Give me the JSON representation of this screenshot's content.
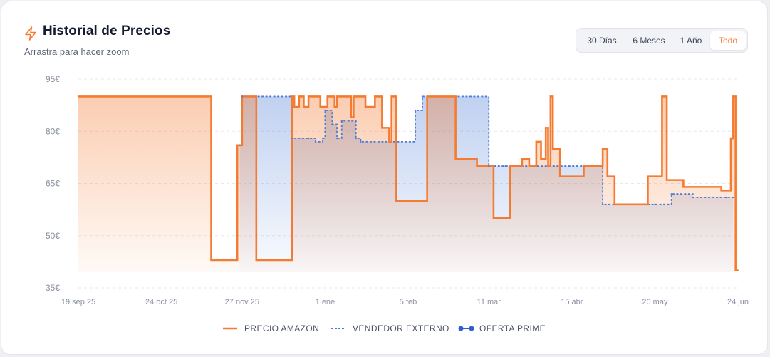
{
  "header": {
    "icon": "lightning-bolt-icon",
    "title": "Historial de Precios",
    "subtitle": "Arrastra para hacer zoom"
  },
  "range_tabs": [
    {
      "label": "30 Días",
      "active": false
    },
    {
      "label": "6 Meses",
      "active": false
    },
    {
      "label": "1 Año",
      "active": false
    },
    {
      "label": "Todo",
      "active": true
    }
  ],
  "colors": {
    "amazon": "#f47c32",
    "external": "#4a7bd6",
    "prime": "#2f5fd0",
    "grid": "#e6e8ee",
    "axis_text": "#8a91a0"
  },
  "legend": [
    {
      "label": "PRECIO AMAZON",
      "style": "solid-line"
    },
    {
      "label": "VENDEDOR EXTERNO",
      "style": "dashed-line"
    },
    {
      "label": "OFERTA PRIME",
      "style": "dot-line"
    }
  ],
  "chart_data": {
    "type": "line",
    "title": "",
    "xlabel": "",
    "ylabel": "",
    "ylim": [
      35,
      95
    ],
    "yticks": [
      {
        "value": 95,
        "label": "95€"
      },
      {
        "value": 80,
        "label": "80€"
      },
      {
        "value": 65,
        "label": "65€"
      },
      {
        "value": 50,
        "label": "50€"
      },
      {
        "value": 35,
        "label": "35€"
      }
    ],
    "xlim": [
      "2025-09-19",
      "2026-06-24"
    ],
    "xticks": [
      {
        "date": "2025-09-19",
        "label": "19 sep 25"
      },
      {
        "date": "2025-10-24",
        "label": "24 oct 25"
      },
      {
        "date": "2025-11-27",
        "label": "27 nov 25"
      },
      {
        "date": "2026-01-01",
        "label": "1 ene"
      },
      {
        "date": "2026-02-05",
        "label": "5 feb"
      },
      {
        "date": "2026-03-11",
        "label": "11 mar"
      },
      {
        "date": "2026-04-15",
        "label": "15 abr"
      },
      {
        "date": "2026-05-20",
        "label": "20 may"
      },
      {
        "date": "2026-06-24",
        "label": "24 jun"
      }
    ],
    "series": [
      {
        "name": "PRECIO AMAZON",
        "step": true,
        "points": [
          [
            "2025-09-19",
            90
          ],
          [
            "2025-11-14",
            43
          ],
          [
            "2025-11-25",
            76
          ],
          [
            "2025-11-27",
            90
          ],
          [
            "2025-12-03",
            43
          ],
          [
            "2025-12-18",
            90
          ],
          [
            "2025-12-19",
            87
          ],
          [
            "2025-12-21",
            90
          ],
          [
            "2025-12-23",
            87
          ],
          [
            "2025-12-25",
            90
          ],
          [
            "2025-12-30",
            87
          ],
          [
            "2026-01-02",
            90
          ],
          [
            "2026-01-05",
            87
          ],
          [
            "2026-01-06",
            90
          ],
          [
            "2026-01-10",
            90
          ],
          [
            "2026-01-12",
            84
          ],
          [
            "2026-01-13",
            90
          ],
          [
            "2026-01-18",
            87
          ],
          [
            "2026-01-22",
            90
          ],
          [
            "2026-01-25",
            81
          ],
          [
            "2026-01-28",
            77
          ],
          [
            "2026-01-29",
            90
          ],
          [
            "2026-01-31",
            60
          ],
          [
            "2026-02-13",
            90
          ],
          [
            "2026-02-25",
            72
          ],
          [
            "2026-03-06",
            70
          ],
          [
            "2026-03-13",
            55
          ],
          [
            "2026-03-20",
            70
          ],
          [
            "2026-03-25",
            72
          ],
          [
            "2026-03-28",
            70
          ],
          [
            "2026-03-31",
            77
          ],
          [
            "2026-04-02",
            72
          ],
          [
            "2026-04-04",
            81
          ],
          [
            "2026-04-05",
            70
          ],
          [
            "2026-04-06",
            90
          ],
          [
            "2026-04-07",
            75
          ],
          [
            "2026-04-10",
            67
          ],
          [
            "2026-04-20",
            70
          ],
          [
            "2026-04-28",
            75
          ],
          [
            "2026-04-30",
            67
          ],
          [
            "2026-05-03",
            59
          ],
          [
            "2026-05-17",
            67
          ],
          [
            "2026-05-23",
            90
          ],
          [
            "2026-05-25",
            66
          ],
          [
            "2026-06-01",
            64
          ],
          [
            "2026-06-17",
            63
          ],
          [
            "2026-06-20",
            63
          ],
          [
            "2026-06-21",
            78
          ],
          [
            "2026-06-22",
            90
          ],
          [
            "2026-06-23",
            40
          ],
          [
            "2026-06-24",
            40
          ]
        ]
      },
      {
        "name": "VENDEDOR EXTERNO",
        "step": true,
        "points": [
          [
            "2025-11-26",
            76
          ],
          [
            "2025-11-27",
            90
          ],
          [
            "2025-12-18",
            78
          ],
          [
            "2025-12-25",
            78
          ],
          [
            "2025-12-28",
            77
          ],
          [
            "2025-12-31",
            78
          ],
          [
            "2026-01-01",
            86
          ],
          [
            "2026-01-04",
            82
          ],
          [
            "2026-01-06",
            78
          ],
          [
            "2026-01-08",
            83
          ],
          [
            "2026-01-14",
            78
          ],
          [
            "2026-01-16",
            77
          ],
          [
            "2026-02-08",
            86
          ],
          [
            "2026-02-11",
            90
          ],
          [
            "2026-03-11",
            70
          ],
          [
            "2026-03-18",
            70
          ],
          [
            "2026-04-28",
            59
          ],
          [
            "2026-05-20",
            59
          ],
          [
            "2026-05-27",
            62
          ],
          [
            "2026-06-05",
            61
          ],
          [
            "2026-06-19",
            61
          ],
          [
            "2026-06-22",
            61
          ]
        ]
      }
    ]
  }
}
